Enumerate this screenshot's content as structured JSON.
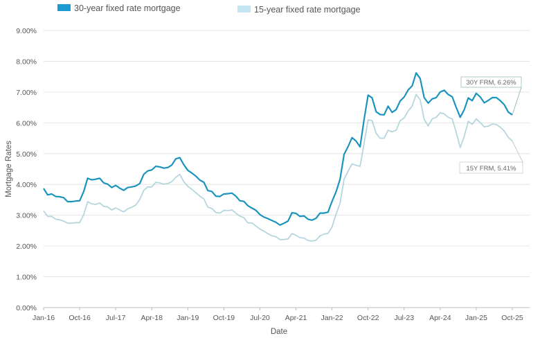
{
  "chart_data": {
    "type": "line",
    "title": "",
    "xlabel": "Date",
    "ylabel": "Mortgage Rates",
    "ylim": [
      0,
      9
    ],
    "grid": true,
    "legend_placement": "top",
    "y_ticks": [
      "0.00%",
      "1.00%",
      "2.00%",
      "3.00%",
      "4.00%",
      "5.00%",
      "6.00%",
      "7.00%",
      "8.00%",
      "9.00%"
    ],
    "x_ticks": [
      "Jan-16",
      "Oct-16",
      "Jul-17",
      "Apr-18",
      "Jan-19",
      "Oct-19",
      "Jul-20",
      "Apr-21",
      "Jan-22",
      "Oct-22",
      "Jul-23",
      "Apr-24",
      "Jan-25",
      "Oct-25"
    ],
    "x_start": "2016-01",
    "x_end": "2025-10",
    "x_frequency": "monthly",
    "series": [
      {
        "name": "30-year fixed rate mortgage",
        "color": "#1a93bd",
        "legend_color": "#1b9bd1",
        "annotation": "30Y FRM, 6.26%",
        "values": [
          3.87,
          3.66,
          3.69,
          3.61,
          3.6,
          3.57,
          3.44,
          3.44,
          3.46,
          3.47,
          3.77,
          4.2,
          4.15,
          4.17,
          4.2,
          4.05,
          4.01,
          3.9,
          3.97,
          3.88,
          3.81,
          3.9,
          3.92,
          3.95,
          4.03,
          4.33,
          4.44,
          4.47,
          4.59,
          4.57,
          4.53,
          4.55,
          4.63,
          4.83,
          4.87,
          4.64,
          4.46,
          4.37,
          4.27,
          4.14,
          4.07,
          3.8,
          3.77,
          3.62,
          3.61,
          3.69,
          3.7,
          3.72,
          3.62,
          3.47,
          3.45,
          3.31,
          3.23,
          3.16,
          3.02,
          2.94,
          2.89,
          2.83,
          2.77,
          2.68,
          2.74,
          2.81,
          3.08,
          3.06,
          2.96,
          2.98,
          2.87,
          2.84,
          2.9,
          3.07,
          3.07,
          3.1,
          3.45,
          3.76,
          4.17,
          4.98,
          5.23,
          5.52,
          5.41,
          5.22,
          6.11,
          6.9,
          6.81,
          6.36,
          6.27,
          6.26,
          6.54,
          6.34,
          6.43,
          6.71,
          6.84,
          7.07,
          7.2,
          7.62,
          7.44,
          6.82,
          6.64,
          6.78,
          6.82,
          7.0,
          7.06,
          6.92,
          6.85,
          6.5,
          6.18,
          6.43,
          6.81,
          6.72,
          6.96,
          6.84,
          6.65,
          6.73,
          6.82,
          6.82,
          6.72,
          6.59,
          6.35,
          6.26
        ]
      },
      {
        "name": "15-year fixed rate mortgage",
        "color": "#b5d6de",
        "legend_color": "#c3e4f0",
        "annotation": "15Y FRM, 5.41%",
        "values": [
          3.14,
          2.96,
          2.96,
          2.87,
          2.85,
          2.81,
          2.74,
          2.74,
          2.76,
          2.76,
          3.02,
          3.44,
          3.37,
          3.35,
          3.4,
          3.29,
          3.27,
          3.17,
          3.24,
          3.17,
          3.11,
          3.21,
          3.26,
          3.33,
          3.51,
          3.81,
          3.92,
          3.92,
          4.07,
          4.05,
          4.01,
          4.03,
          4.09,
          4.23,
          4.33,
          4.09,
          3.94,
          3.84,
          3.73,
          3.62,
          3.53,
          3.26,
          3.22,
          3.09,
          3.07,
          3.16,
          3.15,
          3.17,
          3.07,
          2.97,
          2.92,
          2.75,
          2.75,
          2.65,
          2.55,
          2.48,
          2.4,
          2.33,
          2.3,
          2.21,
          2.21,
          2.23,
          2.4,
          2.35,
          2.27,
          2.26,
          2.18,
          2.16,
          2.19,
          2.33,
          2.39,
          2.41,
          2.62,
          3.03,
          3.39,
          4.17,
          4.43,
          4.67,
          4.62,
          4.59,
          5.33,
          6.1,
          6.07,
          5.66,
          5.5,
          5.5,
          5.76,
          5.71,
          5.76,
          6.07,
          6.16,
          6.39,
          6.54,
          6.92,
          6.75,
          6.12,
          5.9,
          6.13,
          6.18,
          6.33,
          6.29,
          6.18,
          6.13,
          5.69,
          5.2,
          5.56,
          6.05,
          5.95,
          6.13,
          6.01,
          5.87,
          5.89,
          5.96,
          5.95,
          5.86,
          5.73,
          5.53,
          5.41
        ]
      }
    ]
  }
}
